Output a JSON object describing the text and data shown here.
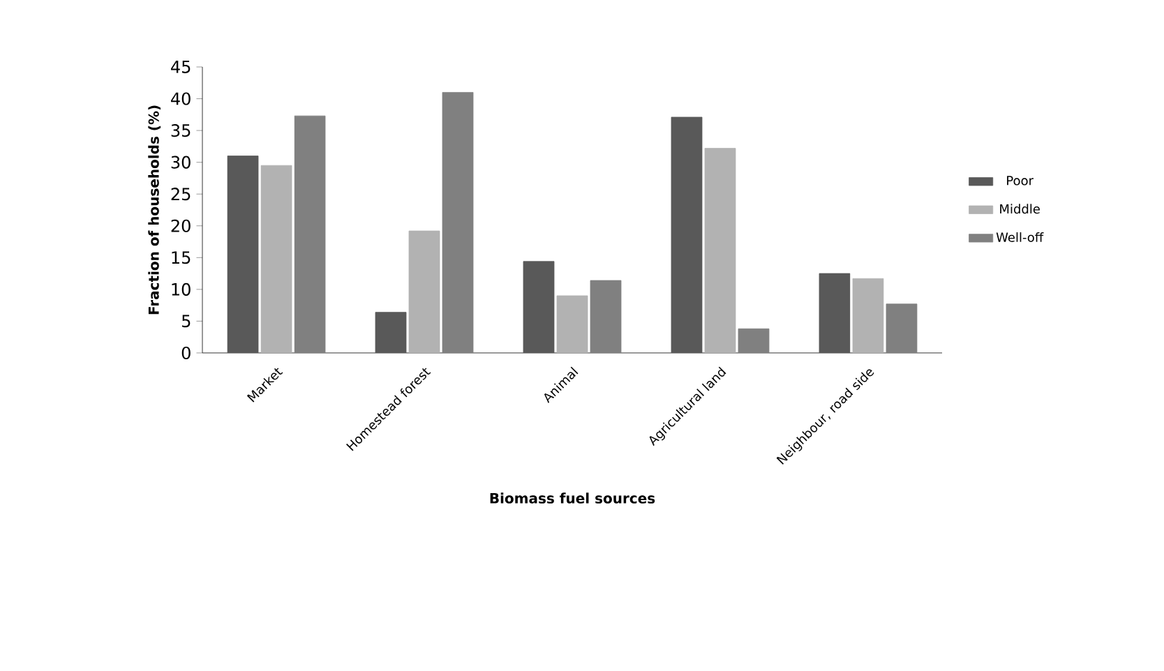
{
  "chart_data": {
    "type": "bar",
    "xlabel": "Biomass fuel sources",
    "ylabel": "Fraction of households (%)",
    "categories": [
      "Market",
      "Homestead forest",
      "Animal",
      "Agricultural land",
      "Neighbour, road side"
    ],
    "series": [
      {
        "name": "Poor",
        "color": "#595959",
        "values": [
          31,
          6.4,
          14.4,
          37.1,
          12.5
        ]
      },
      {
        "name": "Middle",
        "color": "#b2b2b2",
        "values": [
          29.5,
          19.2,
          9,
          32.2,
          11.7
        ]
      },
      {
        "name": "Well-off",
        "color": "#808080",
        "values": [
          37.3,
          41,
          11.4,
          3.8,
          7.7
        ]
      }
    ],
    "ylim": [
      0,
      45
    ],
    "yticks": [
      0,
      5,
      10,
      15,
      20,
      25,
      30,
      35,
      40,
      45
    ],
    "grid": false,
    "legend": "right"
  }
}
